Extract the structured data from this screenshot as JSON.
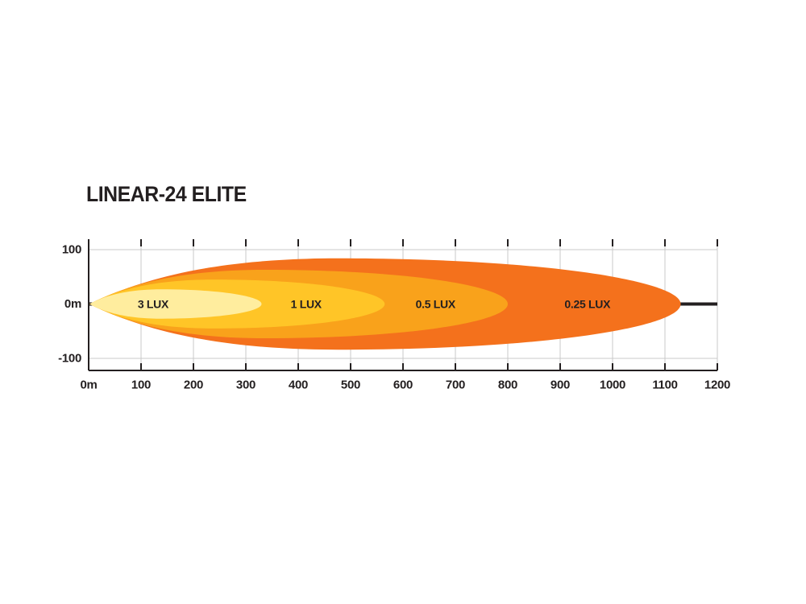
{
  "title": "LINEAR-24 ELITE",
  "colors": {
    "text": "#231F20",
    "grid": "#c9c9c9",
    "axis": "#231F20",
    "background": "#ffffff"
  },
  "chart_data": {
    "type": "area",
    "title": "LINEAR-24 ELITE",
    "description": "Beam pattern lux distance diagram with nested isolux zones",
    "x_axis": {
      "min": 0,
      "max": 1200,
      "tick_step": 100,
      "tick_labels": [
        "0m",
        "100",
        "200",
        "300",
        "400",
        "500",
        "600",
        "700",
        "800",
        "900",
        "1000",
        "1100",
        "1200"
      ]
    },
    "y_axis": {
      "values": [
        100,
        0,
        -100
      ],
      "tick_labels": [
        "100",
        "0m",
        "-100"
      ]
    },
    "grid": true,
    "legend": "labels-inside-zones",
    "zones": [
      {
        "label": "0.25 LUX",
        "lux": 0.25,
        "reach_m": 1130,
        "half_width_m": 84,
        "color": "#F4711C",
        "label_at_m": 952
      },
      {
        "label": "0.5 LUX",
        "lux": 0.5,
        "reach_m": 800,
        "half_width_m": 63,
        "color": "#F9A21B",
        "label_at_m": 662
      },
      {
        "label": "1 LUX",
        "lux": 1,
        "reach_m": 565,
        "half_width_m": 45,
        "color": "#FFC527",
        "label_at_m": 415
      },
      {
        "label": "3 LUX",
        "lux": 3,
        "reach_m": 330,
        "half_width_m": 27,
        "color": "#FFED9E",
        "label_at_m": 123
      }
    ]
  }
}
